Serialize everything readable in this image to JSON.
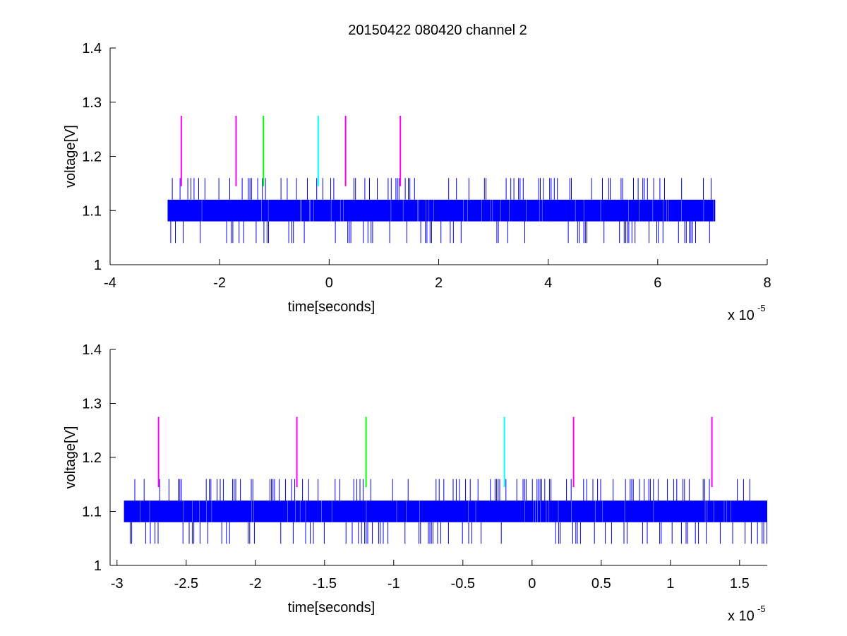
{
  "figure": {
    "title": "20150422 080420 channel 2",
    "exponent_base": "x 10",
    "exponent_power": "-5"
  },
  "colors": {
    "signal": "#0000ff",
    "marker_magenta": "#ff00ff",
    "marker_green": "#00ff00",
    "marker_cyan": "#00ffff",
    "axes": "#000000"
  },
  "chart_data": [
    {
      "type": "line",
      "title": "20150422 080420 channel 2",
      "xlabel": "time[seconds]",
      "ylabel": "voltage[V]",
      "x_scale_note": "x 10^-5",
      "xlim": [
        -4,
        8
      ],
      "ylim": [
        1,
        1.4
      ],
      "xticks": [
        "-4",
        "-2",
        "0",
        "2",
        "4",
        "6",
        "8"
      ],
      "yticks": [
        "1",
        "1.1",
        "1.2",
        "1.3",
        "1.4"
      ],
      "grid": false,
      "series": [
        {
          "color": "#0000ff",
          "x_range": [
            -2.95,
            7.05
          ],
          "band": [
            1.08,
            1.12
          ],
          "spike_levels": [
            1.04,
            1.16
          ],
          "description_values": {
            "baseline": 1.1
          }
        }
      ],
      "markers": [
        {
          "x": -2.7,
          "y": [
            1.145,
            1.275
          ],
          "color": "magenta"
        },
        {
          "x": -1.7,
          "y": [
            1.145,
            1.275
          ],
          "color": "magenta"
        },
        {
          "x": -1.2,
          "y": [
            1.145,
            1.275
          ],
          "color": "green"
        },
        {
          "x": -0.2,
          "y": [
            1.145,
            1.275
          ],
          "color": "cyan"
        },
        {
          "x": 0.3,
          "y": [
            1.145,
            1.275
          ],
          "color": "magenta"
        },
        {
          "x": 1.3,
          "y": [
            1.145,
            1.275
          ],
          "color": "magenta"
        }
      ]
    },
    {
      "type": "line",
      "title": "",
      "xlabel": "time[seconds]",
      "ylabel": "voltage[V]",
      "x_scale_note": "x 10^-5",
      "xlim": [
        -3.05,
        1.7
      ],
      "ylim": [
        1,
        1.4
      ],
      "xticks": [
        "-3",
        "-2.5",
        "-2",
        "-1.5",
        "-1",
        "-0.5",
        "0",
        "0.5",
        "1",
        "1.5"
      ],
      "yticks": [
        "1",
        "1.1",
        "1.2",
        "1.3",
        "1.4"
      ],
      "grid": false,
      "series": [
        {
          "color": "#0000ff",
          "x_range": [
            -2.95,
            1.7
          ],
          "band": [
            1.08,
            1.12
          ],
          "spike_levels": [
            1.04,
            1.16
          ],
          "description_values": {
            "baseline": 1.1
          }
        }
      ],
      "markers": [
        {
          "x": -2.7,
          "y": [
            1.145,
            1.275
          ],
          "color": "magenta"
        },
        {
          "x": -1.7,
          "y": [
            1.145,
            1.275
          ],
          "color": "magenta"
        },
        {
          "x": -1.2,
          "y": [
            1.145,
            1.275
          ],
          "color": "green"
        },
        {
          "x": -0.2,
          "y": [
            1.145,
            1.275
          ],
          "color": "cyan"
        },
        {
          "x": 0.3,
          "y": [
            1.145,
            1.275
          ],
          "color": "magenta"
        },
        {
          "x": 1.3,
          "y": [
            1.145,
            1.275
          ],
          "color": "magenta"
        }
      ]
    }
  ]
}
